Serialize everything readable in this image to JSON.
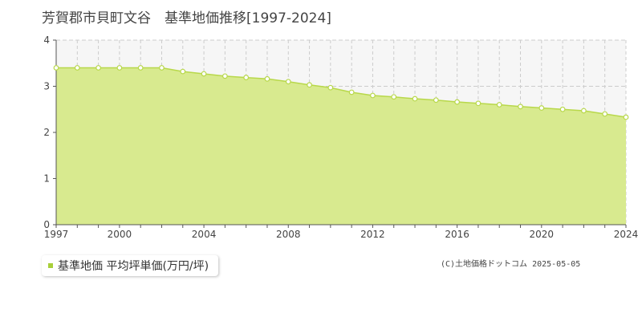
{
  "title": "芳賀郡市貝町文谷　基準地価推移[1997-2024]",
  "copyright": "(C)土地価格ドットコム 2025-05-05",
  "legend": {
    "label": "基準地価 平均坪単価(万円/坪)",
    "marker_color": "#a8cf3a"
  },
  "colors": {
    "area_fill": "#d8ea8f",
    "line": "#b8d84a",
    "marker_fill": "#ffffff",
    "grid": "#cccccc",
    "plot_bg": "#f6f6f6"
  },
  "chart_data": {
    "type": "area",
    "title": "芳賀郡市貝町文谷　基準地価推移[1997-2024]",
    "x": [
      1997,
      1998,
      1999,
      2000,
      2001,
      2002,
      2003,
      2004,
      2005,
      2006,
      2007,
      2008,
      2009,
      2010,
      2011,
      2012,
      2013,
      2014,
      2015,
      2016,
      2017,
      2018,
      2019,
      2020,
      2021,
      2022,
      2023,
      2024
    ],
    "series": [
      {
        "name": "基準地価 平均坪単価(万円/坪)",
        "values": [
          3.4,
          3.4,
          3.4,
          3.4,
          3.4,
          3.4,
          3.32,
          3.27,
          3.22,
          3.19,
          3.16,
          3.1,
          3.03,
          2.97,
          2.87,
          2.8,
          2.77,
          2.73,
          2.7,
          2.66,
          2.63,
          2.6,
          2.56,
          2.53,
          2.5,
          2.47,
          2.4,
          2.33
        ]
      }
    ],
    "xlim": [
      1997,
      2024
    ],
    "ylim": [
      0,
      4
    ],
    "x_ticks": [
      "1997",
      "2000",
      "2004",
      "2008",
      "2012",
      "2016",
      "2020",
      "2024"
    ],
    "y_ticks": [
      "0",
      "1",
      "2",
      "3",
      "4"
    ],
    "grid": true,
    "legend_position": "bottom-left"
  }
}
